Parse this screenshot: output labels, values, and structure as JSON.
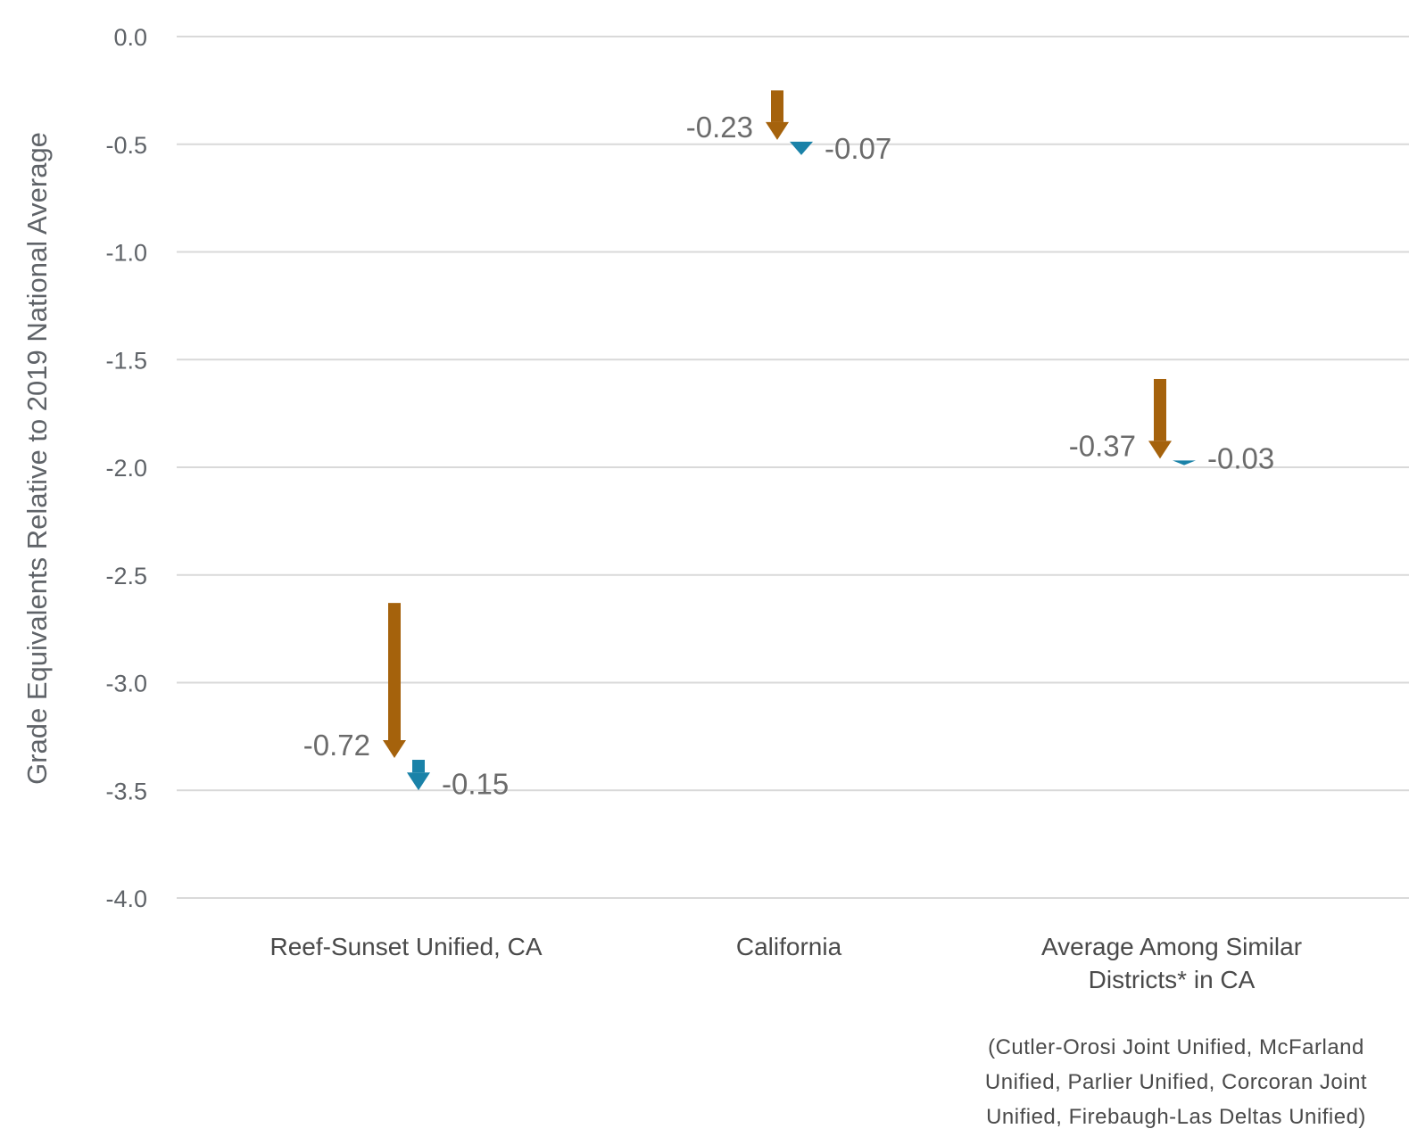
{
  "chart_data": {
    "type": "arrow",
    "ylabel": "Grade Equivalents Relative to 2019 National Average",
    "ylim": [
      -4.0,
      0.0
    ],
    "yticks": [
      "0.0",
      "-0.5",
      "-1.0",
      "-1.5",
      "-2.0",
      "-2.5",
      "-3.0",
      "-3.5",
      "-4.0"
    ],
    "ytick_values": [
      0.0,
      -0.5,
      -1.0,
      -1.5,
      -2.0,
      -2.5,
      -3.0,
      -3.5,
      -4.0
    ],
    "grid": true,
    "colors": {
      "first_change": "#a5620c",
      "second_change": "#1a82a8"
    },
    "categories": [
      {
        "label_lines": [
          "Reef-Sunset Unified, CA"
        ],
        "start": -2.63,
        "first_change": {
          "value": -0.72,
          "label": "-0.72",
          "end": -3.35
        },
        "second_change": {
          "value": -0.15,
          "label": "-0.15",
          "end": -3.5
        }
      },
      {
        "label_lines": [
          "California"
        ],
        "start": -0.25,
        "first_change": {
          "value": -0.23,
          "label": "-0.23",
          "end": -0.48
        },
        "second_change": {
          "value": -0.07,
          "label": "-0.07",
          "end": -0.55
        }
      },
      {
        "label_lines": [
          "Average Among Similar",
          "Districts* in CA"
        ],
        "start": -1.59,
        "first_change": {
          "value": -0.37,
          "label": "-0.37",
          "end": -1.96
        },
        "second_change": {
          "value": -0.03,
          "label": "-0.03",
          "end": -1.99
        }
      }
    ],
    "footnote_lines": [
      "(Cutler-Orosi Joint Unified, McFarland",
      "Unified, Parlier Unified, Corcoran Joint",
      "Unified, Firebaugh-Las Deltas Unified)"
    ]
  }
}
